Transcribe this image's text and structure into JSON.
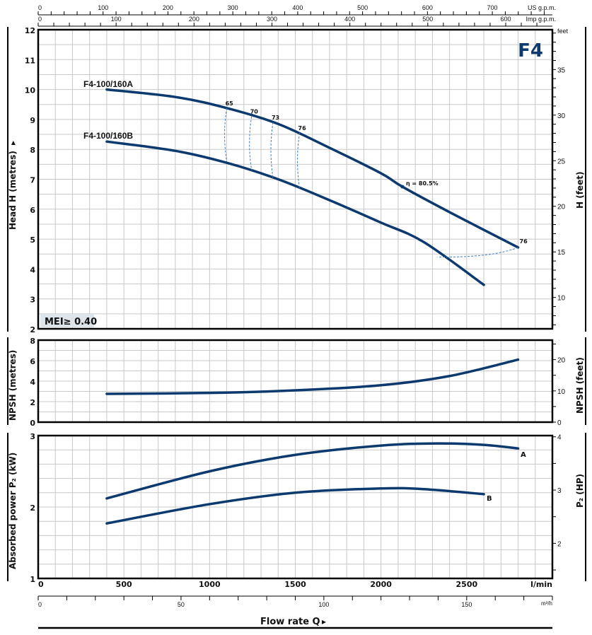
{
  "chart_data": [
    {
      "type": "line",
      "title": "F4",
      "panel": "head",
      "xlabel": "Flow rate Q",
      "ylabel": "Head H (metres)",
      "ylabel_right": "H (feet)",
      "right_unit": "feet",
      "xlim": [
        0,
        3000
      ],
      "ylim": [
        2,
        12
      ],
      "yticks": [
        2,
        3,
        4,
        5,
        6,
        7,
        8,
        9,
        10,
        11,
        12
      ],
      "yticks_right": [
        10,
        15,
        20,
        25,
        30,
        35
      ],
      "grid": true,
      "badge": "MEI≥ 0.40",
      "series": [
        {
          "name": "F4-100/160A",
          "x": [
            400,
            800,
            1100,
            1400,
            1700,
            2000,
            2125,
            2400,
            2800
          ],
          "y": [
            10.0,
            9.75,
            9.38,
            8.85,
            8.05,
            7.2,
            6.75,
            5.9,
            4.72
          ]
        },
        {
          "name": "F4-100/160B",
          "x": [
            400,
            800,
            1100,
            1400,
            1700,
            2000,
            2250,
            2600
          ],
          "y": [
            8.26,
            7.95,
            7.55,
            7.0,
            6.3,
            5.55,
            4.9,
            3.47
          ]
        }
      ],
      "efficiency_lines": [
        {
          "label": "65",
          "x": 1100,
          "y_top": 9.38,
          "y_bottom": 7.6
        },
        {
          "label": "70",
          "x": 1245,
          "y_top": 9.1,
          "y_bottom": 7.3
        },
        {
          "label": "73",
          "x": 1370,
          "y_top": 8.9,
          "y_bottom": 7.05
        },
        {
          "label": "76",
          "x": 1525,
          "y_top": 8.55,
          "y_bottom": 6.7
        }
      ],
      "efficiency_line_right": {
        "label": "76",
        "from": [
          2800,
          4.72
        ],
        "to": [
          2330,
          4.4
        ]
      },
      "best_efficiency": {
        "label": "η = 80.5%",
        "x": 2125,
        "y": 6.75
      }
    },
    {
      "type": "line",
      "panel": "npsh",
      "ylabel": "NPSH (metres)",
      "ylabel_right": "NPSH (feet)",
      "xlim": [
        0,
        3000
      ],
      "ylim": [
        0,
        8
      ],
      "yticks": [
        0,
        2,
        4,
        6,
        8
      ],
      "yticks_right": [
        0,
        10,
        20
      ],
      "grid": true,
      "series": [
        {
          "name": "NPSH",
          "x": [
            400,
            1000,
            1500,
            2000,
            2400,
            2800
          ],
          "y": [
            2.76,
            2.85,
            3.1,
            3.6,
            4.5,
            6.1
          ]
        }
      ]
    },
    {
      "type": "line",
      "panel": "power",
      "ylabel": "Absorbed power P₂ (kW)",
      "ylabel_right": "P₂ (HP)",
      "xlabel": "Flow rate Q",
      "xlim": [
        0,
        3000
      ],
      "ylim": [
        1,
        3
      ],
      "yticks": [
        1,
        2,
        3
      ],
      "yticks_right": [
        2,
        3,
        4
      ],
      "grid": true,
      "series": [
        {
          "name": "A",
          "x": [
            400,
            1000,
            1500,
            2000,
            2330,
            2600,
            2800
          ],
          "y": [
            2.12,
            2.5,
            2.73,
            2.86,
            2.89,
            2.87,
            2.82
          ]
        },
        {
          "name": "B",
          "x": [
            400,
            1000,
            1500,
            2000,
            2250,
            2600
          ],
          "y": [
            1.77,
            2.04,
            2.2,
            2.26,
            2.25,
            2.18
          ]
        }
      ]
    }
  ],
  "axes": {
    "lpm": {
      "unit": "l/min",
      "ticks": [
        "0",
        "500",
        "1000",
        "1500",
        "2000",
        "2500"
      ]
    },
    "m3h": {
      "unit": "m³/h",
      "ticks": [
        "0",
        "50",
        "100",
        "150"
      ]
    },
    "usgpm": {
      "unit": "US g.p.m.",
      "ticks": [
        "0",
        "100",
        "200",
        "300",
        "400",
        "500",
        "600",
        "700"
      ]
    },
    "impgpm": {
      "unit": "Imp g.p.m.",
      "ticks": [
        "0",
        "100",
        "200",
        "300",
        "400",
        "500",
        "600"
      ]
    }
  },
  "colors": {
    "curve": "#0d3a6e",
    "dashed": "#3b7fc0",
    "grid": "#c8c8c8",
    "badge_bg": "#dde4ea",
    "title": "#0d3a6e"
  }
}
